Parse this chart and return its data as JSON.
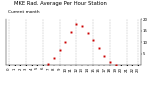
{
  "title": "MKE Rad. Average Per Hour Station",
  "subtitle": "Current month",
  "hours": [
    0,
    1,
    2,
    3,
    4,
    5,
    6,
    7,
    8,
    9,
    10,
    11,
    12,
    13,
    14,
    15,
    16,
    17,
    18,
    19,
    20,
    21,
    22,
    23
  ],
  "values": [
    0,
    0,
    0,
    0,
    0,
    0,
    0,
    0.5,
    3.0,
    6.5,
    10.0,
    14.5,
    18.0,
    17.0,
    14.0,
    11.0,
    7.5,
    4.0,
    1.5,
    0.2,
    0,
    0,
    0,
    0
  ],
  "dot_color_main": "#cc0000",
  "dot_color_black": "#111111",
  "bg_color": "#ffffff",
  "grid_color": "#bbbbbb",
  "ylim": [
    0,
    20
  ],
  "ytick_values": [
    5,
    10,
    15,
    20
  ],
  "ytick_labels": [
    "5",
    "10",
    "15",
    "20"
  ],
  "grid_hours": [
    0,
    3,
    6,
    9,
    12,
    15,
    18,
    21,
    23
  ],
  "title_fontsize": 3.8,
  "subtitle_fontsize": 3.2,
  "tick_fontsize": 2.8,
  "marker_size": 1.4
}
